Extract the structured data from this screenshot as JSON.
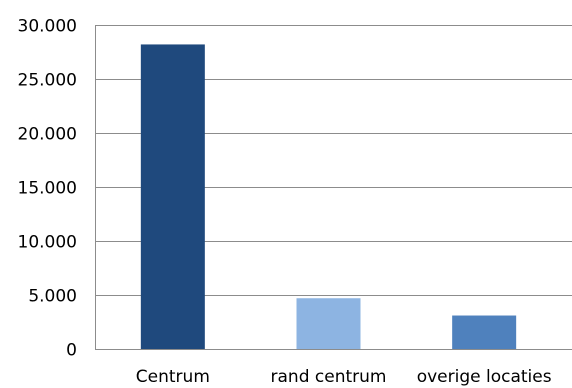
{
  "chart_data": {
    "type": "bar",
    "categories": [
      "Centrum",
      "rand centrum",
      "overige locaties"
    ],
    "values": [
      28200,
      4700,
      3100
    ],
    "bar_colors": [
      "#1f497d",
      "#8db4e2",
      "#4f81bd"
    ],
    "ylim": [
      0,
      30000
    ],
    "yticks": [
      0,
      5000,
      10000,
      15000,
      20000,
      25000,
      30000
    ],
    "ytick_labels": [
      "0",
      "5.000",
      "10.000",
      "15.000",
      "20.000",
      "25.000",
      "30.000"
    ],
    "grid": true,
    "grid_color": "#8c8c8c",
    "legend": false,
    "title": "",
    "xlabel": "",
    "ylabel": ""
  }
}
